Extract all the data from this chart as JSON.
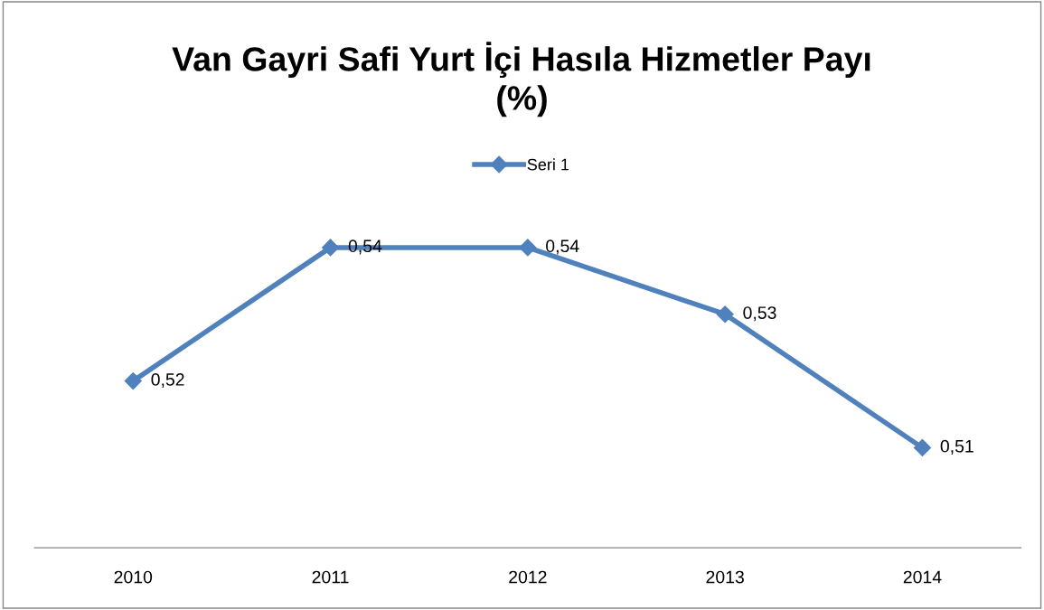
{
  "chart_data": {
    "type": "line",
    "title": "Van Gayri Safi Yurt İçi Hasıla Hizmetler Payı\n(%)",
    "categories": [
      "2010",
      "2011",
      "2012",
      "2013",
      "2014"
    ],
    "series": [
      {
        "name": "Seri 1",
        "color": "#4f81bd",
        "values": [
          0.52,
          0.54,
          0.54,
          0.53,
          0.51
        ],
        "value_labels": [
          "0,52",
          "0,54",
          "0,54",
          "0,53",
          "0,51"
        ]
      }
    ],
    "tick_labels": "x",
    "grid": false,
    "legend": "top",
    "marker": "diamond",
    "line_style": "solid"
  }
}
